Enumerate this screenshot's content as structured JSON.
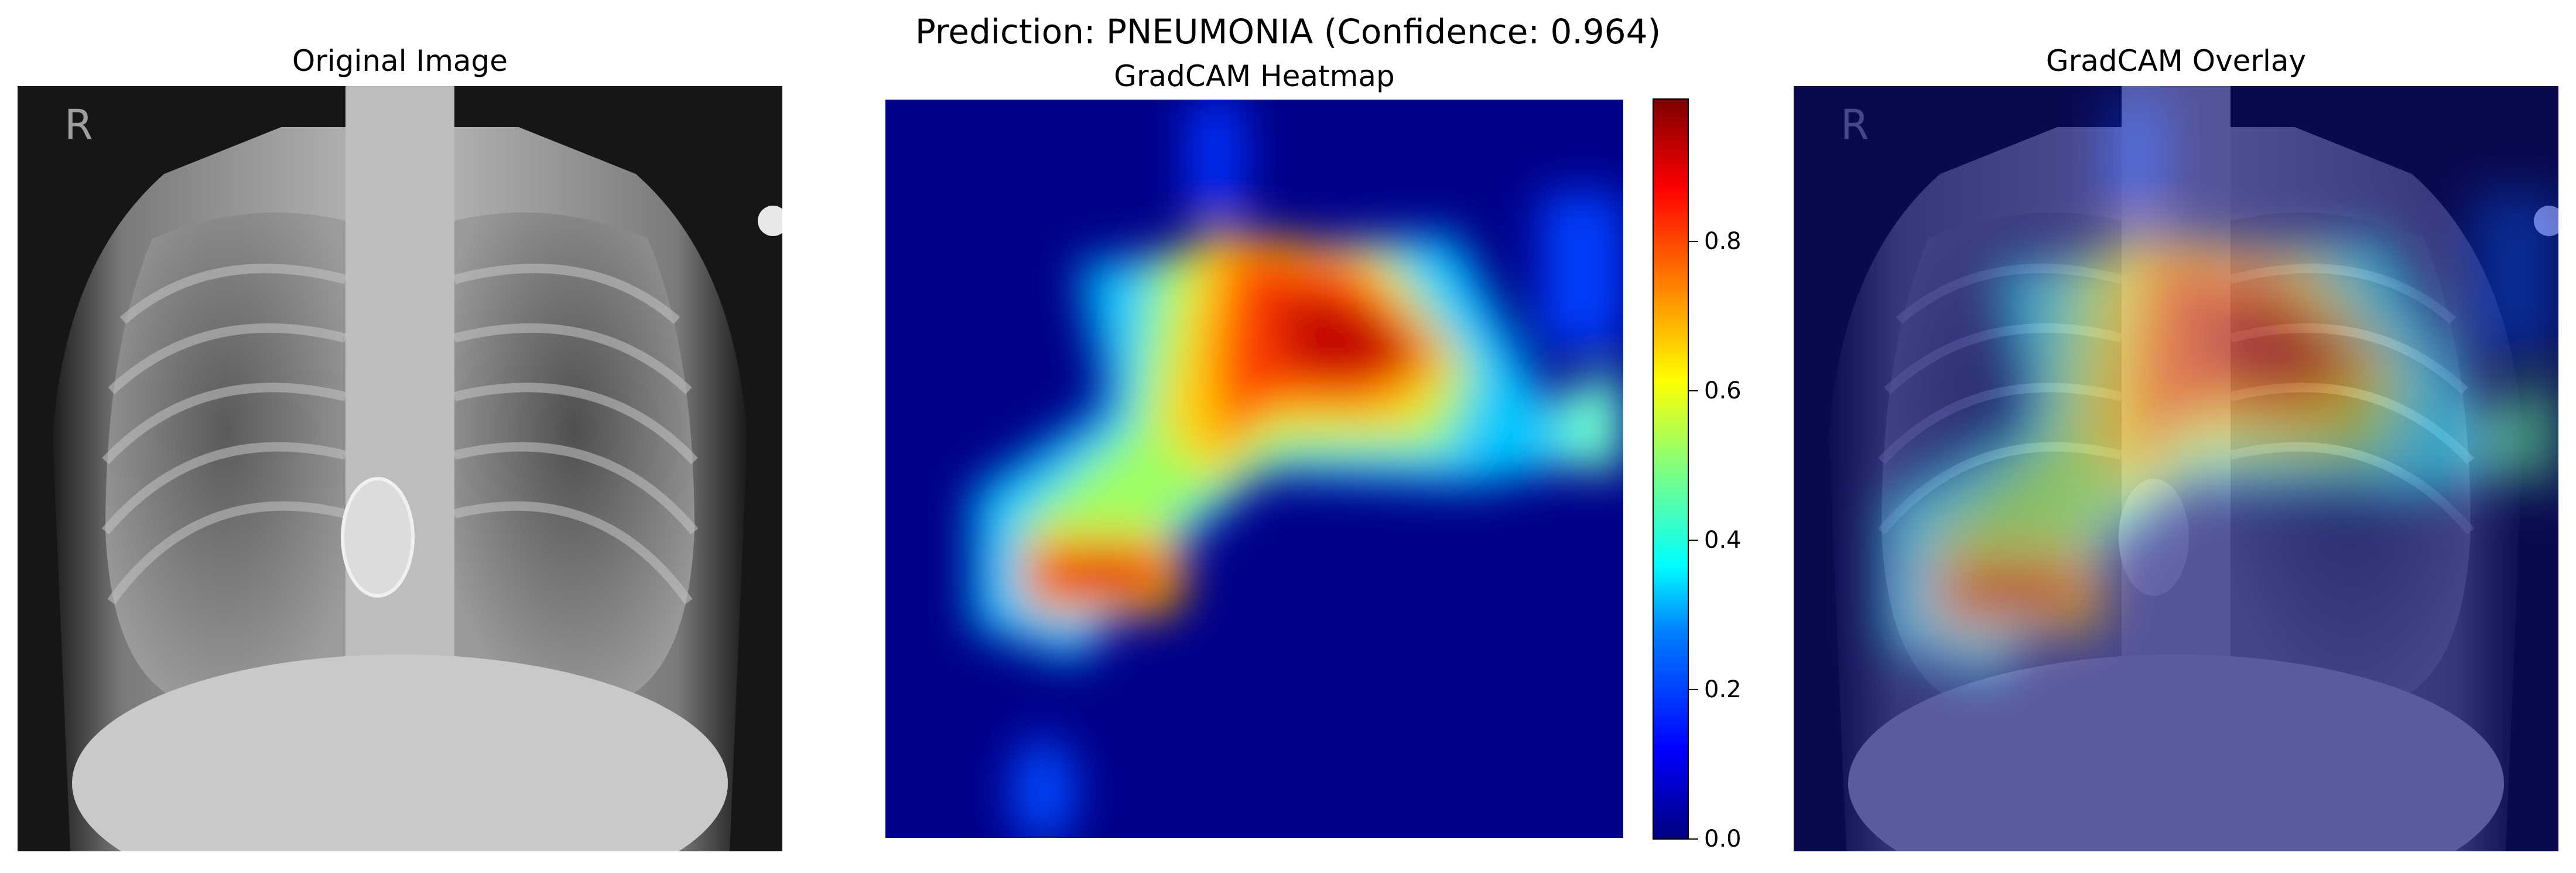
{
  "figure": {
    "title": "Prediction: PNEUMONIA (Confidence: 0.964)"
  },
  "panels": {
    "original": {
      "title": "Original Image"
    },
    "heatmap": {
      "title": "GradCAM Heatmap"
    },
    "overlay": {
      "title": "GradCAM Overlay"
    }
  },
  "xray_marker": "R",
  "colorbar": {
    "ticks": [
      "0.0",
      "0.2",
      "0.4",
      "0.6",
      "0.8"
    ],
    "range": [
      0.0,
      0.99
    ],
    "colormap": "jet"
  },
  "colors": {
    "background": "#ffffff",
    "jet_low": "#00007f",
    "jet_high": "#7f0000"
  }
}
